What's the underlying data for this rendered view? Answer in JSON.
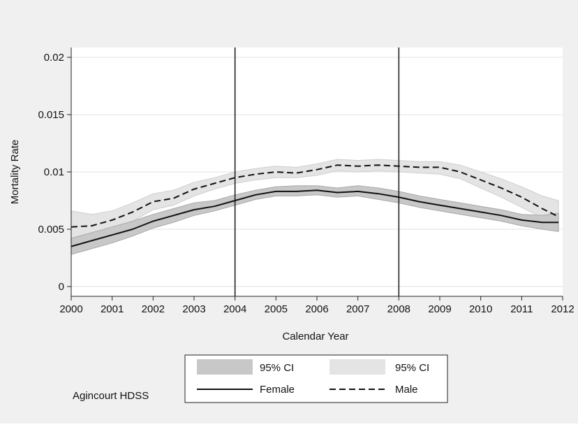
{
  "chart_data": {
    "type": "line",
    "title": "",
    "xlabel": "Calendar Year",
    "ylabel": "Mortality Rate",
    "xlim": [
      2000,
      2012
    ],
    "ylim": [
      0,
      0.02
    ],
    "x_ticks": [
      2000,
      2001,
      2002,
      2003,
      2004,
      2005,
      2006,
      2007,
      2008,
      2009,
      2010,
      2011,
      2012
    ],
    "x_tick_labels": [
      "2000",
      "2001",
      "2002",
      "2003",
      "2004",
      "2005",
      "2006",
      "2007",
      "2008",
      "2009",
      "2010",
      "2011",
      "2012"
    ],
    "y_ticks": [
      0,
      0.005,
      0.01,
      0.015,
      0.02
    ],
    "y_tick_labels": [
      "0",
      "0.005",
      "0.01",
      "0.015",
      "0.02"
    ],
    "grid": "horizontal",
    "reference_lines_x": [
      2004,
      2008
    ],
    "x": [
      2000.0,
      2000.5,
      2001.0,
      2001.5,
      2002.0,
      2002.5,
      2003.0,
      2003.5,
      2004.0,
      2004.5,
      2005.0,
      2005.5,
      2006.0,
      2006.5,
      2007.0,
      2007.5,
      2008.0,
      2008.5,
      2009.0,
      2009.5,
      2010.0,
      2010.5,
      2011.0,
      2011.5,
      2011.9
    ],
    "series": [
      {
        "name": "Female",
        "style": "solid",
        "color": "#111111",
        "values": [
          0.0035,
          0.004,
          0.0045,
          0.005,
          0.0057,
          0.0062,
          0.0067,
          0.007,
          0.0075,
          0.008,
          0.0083,
          0.0083,
          0.0084,
          0.0082,
          0.0083,
          0.0081,
          0.0078,
          0.0074,
          0.0071,
          0.0068,
          0.0065,
          0.0062,
          0.0058,
          0.0056,
          0.0056
        ],
        "ci_lower": [
          0.0028,
          0.0033,
          0.0038,
          0.0044,
          0.0051,
          0.0056,
          0.0062,
          0.0066,
          0.0071,
          0.0076,
          0.0079,
          0.0079,
          0.008,
          0.0078,
          0.0079,
          0.0076,
          0.0073,
          0.0069,
          0.0066,
          0.0063,
          0.006,
          0.0057,
          0.0053,
          0.005,
          0.0048
        ],
        "ci_upper": [
          0.0042,
          0.0047,
          0.0052,
          0.0057,
          0.0063,
          0.0068,
          0.0073,
          0.0075,
          0.008,
          0.0084,
          0.0087,
          0.0088,
          0.0088,
          0.0086,
          0.0088,
          0.0086,
          0.0083,
          0.0079,
          0.0076,
          0.0073,
          0.007,
          0.0067,
          0.0063,
          0.0062,
          0.0064
        ],
        "ci_color": "#c8c8c8"
      },
      {
        "name": "Male",
        "style": "dashed",
        "color": "#111111",
        "values": [
          0.0052,
          0.0053,
          0.0058,
          0.0065,
          0.0074,
          0.0077,
          0.0085,
          0.009,
          0.0095,
          0.0098,
          0.01,
          0.0099,
          0.0102,
          0.0106,
          0.0105,
          0.0106,
          0.0105,
          0.0104,
          0.0104,
          0.01,
          0.0093,
          0.0086,
          0.0078,
          0.0068,
          0.0061
        ],
        "ci_lower": [
          0.004,
          0.0044,
          0.005,
          0.0057,
          0.0067,
          0.0071,
          0.0079,
          0.0085,
          0.009,
          0.0093,
          0.0095,
          0.0095,
          0.0097,
          0.0101,
          0.01,
          0.0101,
          0.01,
          0.0099,
          0.0098,
          0.0094,
          0.0086,
          0.0078,
          0.0069,
          0.006,
          0.0052
        ],
        "ci_upper": [
          0.0066,
          0.0063,
          0.0066,
          0.0073,
          0.0081,
          0.0084,
          0.0091,
          0.0095,
          0.01,
          0.0103,
          0.0105,
          0.0104,
          0.0107,
          0.0111,
          0.011,
          0.0111,
          0.011,
          0.0109,
          0.0109,
          0.0106,
          0.01,
          0.0094,
          0.0087,
          0.0079,
          0.0075
        ],
        "ci_color": "#e4e4e4"
      }
    ],
    "legend": {
      "placement": "bottom-center",
      "entries": [
        {
          "label": "95% CI",
          "kind": "area",
          "color": "#c8c8c8"
        },
        {
          "label": "95% CI",
          "kind": "area",
          "color": "#e4e4e4"
        },
        {
          "label": "Female",
          "kind": "line",
          "style": "solid"
        },
        {
          "label": "Male",
          "kind": "line",
          "style": "dashed"
        }
      ]
    },
    "note": "Agincourt HDSS"
  }
}
